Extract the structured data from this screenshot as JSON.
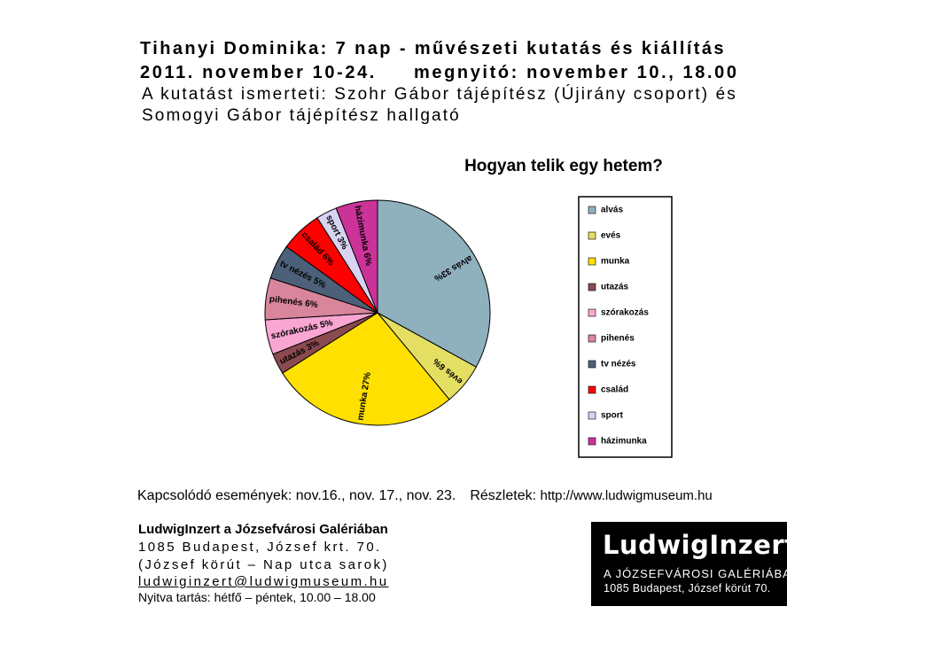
{
  "header": {
    "line1": "Tihanyi Dominika: 7 nap - művészeti kutatás és kiállítás",
    "line2_dates": "2011. november 10-24.",
    "line2_opening": "megnyitó: november 10., 18.00",
    "line3": "A kutatást ismerteti: Szohr Gábor tájépítész (Újirány csoport) és",
    "line4": "Somogyi Gábor tájépítész hallgató"
  },
  "chart_data": {
    "type": "pie",
    "title": "Hogyan telik egy hetem?",
    "legend_position": "right",
    "slices": [
      {
        "name": "alvás",
        "value": 33,
        "label": "alvás 33%",
        "color": "#8fb0bd"
      },
      {
        "name": "evés",
        "value": 6,
        "label": "evés 6%",
        "color": "#e4df62"
      },
      {
        "name": "munka",
        "value": 27,
        "label": "munka 27%",
        "color": "#ffe000"
      },
      {
        "name": "utazás",
        "value": 3,
        "label": "utazás 3%",
        "color": "#8a4a4f"
      },
      {
        "name": "szórakozás",
        "value": 5,
        "label": "szórakozás 5%",
        "color": "#f9a6d3"
      },
      {
        "name": "pihenés",
        "value": 6,
        "label": "pihenés 6%",
        "color": "#d9859c"
      },
      {
        "name": "tv nézés",
        "value": 5,
        "label": "tv nézés 5%",
        "color": "#4d6079"
      },
      {
        "name": "család",
        "value": 6,
        "label": "család 6%",
        "color": "#ff0000"
      },
      {
        "name": "sport",
        "value": 3,
        "label": "sport 3%",
        "color": "#d9d3f2"
      },
      {
        "name": "házimunka",
        "value": 6,
        "label": "házimunka 6%",
        "color": "#cc3399"
      }
    ]
  },
  "events": {
    "text": "Kapcsolódó események: nov.16., nov. 17., nov. 23.",
    "details_label": "Részletek:",
    "url": "http://www.ludwigmuseum.hu"
  },
  "venue": {
    "name": "LudwigInzert a Józsefvárosi Galériában",
    "address": "1085 Budapest, József krt. 70.",
    "corner": "(József körút – Nap utca sarok)",
    "email": "ludwiginzert@ludwigmuseum.hu",
    "hours": "Nyitva tartás: hétfő – péntek, 10.00 – 18.00"
  },
  "logo": {
    "title": "LudwigInzert",
    "subtitle": "A JÓZSEFVÁROSI GALÉRIÁBAN",
    "address": "1085 Budapest, József körút 70."
  }
}
